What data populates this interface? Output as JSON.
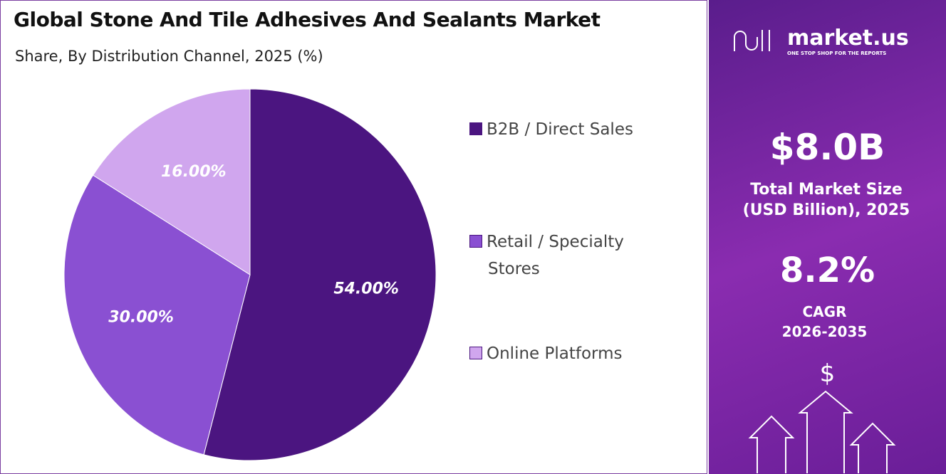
{
  "chart_data": {
    "type": "pie",
    "title": "Global Stone And Tile Adhesives And Sealants Market",
    "subtitle": "Share, By Distribution Channel, 2025 (%)",
    "categories": [
      "B2B / Direct Sales",
      "Retail / Specialty Stores",
      "Online Platforms"
    ],
    "values": [
      54,
      30,
      16
    ],
    "value_labels": [
      "54.00%",
      "30.00%",
      "16.00%"
    ],
    "colors": [
      "#4b1580",
      "#8a50d2",
      "#d0a6ee"
    ]
  },
  "panel": {
    "brand": "market.us",
    "tagline": "ONE STOP SHOP FOR THE REPORTS",
    "market_size": "$8.0B",
    "market_size_label": "Total Market Size (USD Billion), 2025",
    "cagr": "8.2%",
    "cagr_label": "CAGR 2026-2035",
    "icon": "$"
  }
}
